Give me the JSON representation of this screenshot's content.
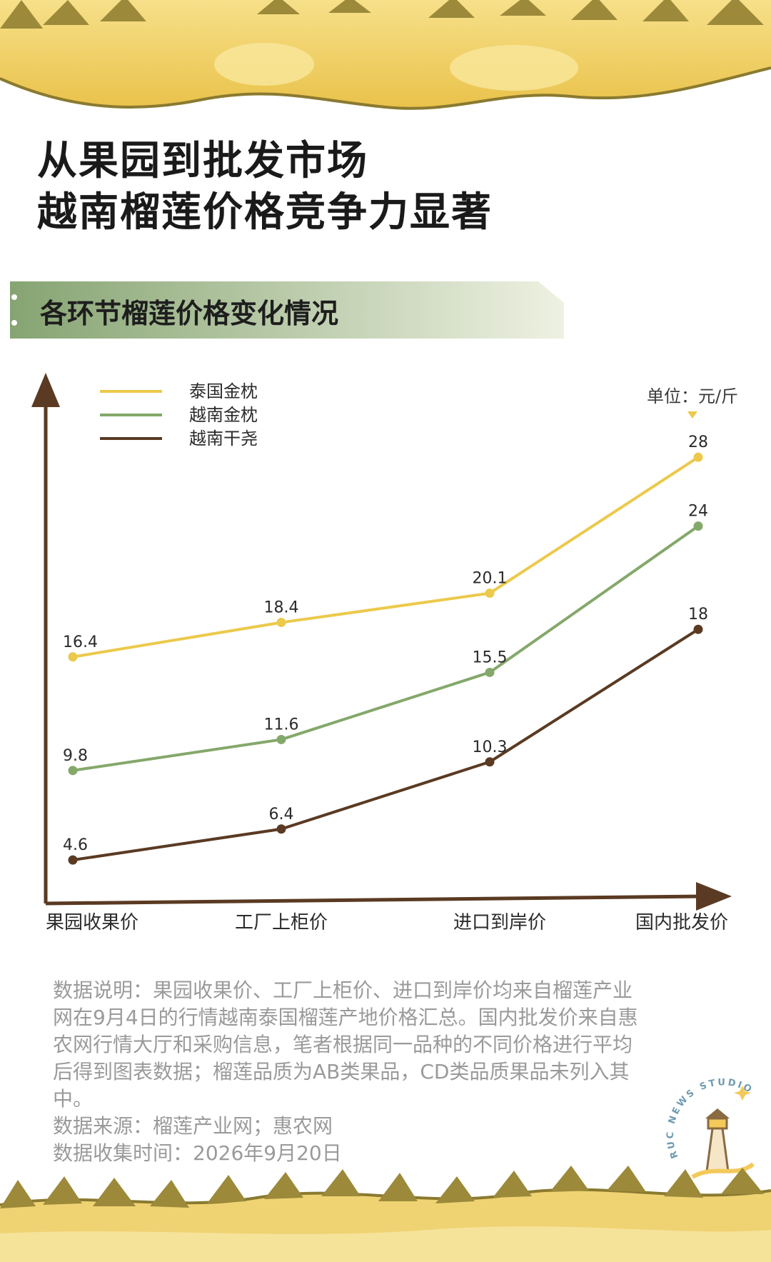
{
  "title": {
    "line1": "从果园到批发市场",
    "line2": "越南榴莲价格竞争力显著"
  },
  "section_header": "各环节榴莲价格变化情况",
  "chart_data": {
    "type": "line",
    "unit_label": "单位：元/斤",
    "categories": [
      "果园收果价",
      "工厂上柜价",
      "进口到岸价",
      "国内批发价"
    ],
    "series": [
      {
        "name": "泰国金枕",
        "color": "#ecc94b",
        "values": [
          16.4,
          18.4,
          20.1,
          28
        ]
      },
      {
        "name": "越南金枕",
        "color": "#84a86a",
        "values": [
          9.8,
          11.6,
          15.5,
          24
        ]
      },
      {
        "name": "越南干尧",
        "color": "#5a3a22",
        "values": [
          4.6,
          6.4,
          10.3,
          18
        ]
      }
    ],
    "data_labels": [
      [
        "16.4",
        "18.4",
        "20.1",
        "28"
      ],
      [
        "9.8",
        "11.6",
        "15.5",
        "24"
      ],
      [
        "4.6",
        "6.4",
        "10.3",
        "18"
      ]
    ],
    "grid": false,
    "legend_position": "top-left"
  },
  "notes": {
    "description": "数据说明：果园收果价、工厂上柜价、进口到岸价均来自榴莲产业网在9月4日的行情越南泰国榴莲产地价格汇总。国内批发价来自惠农网行情大厅和采购信息，笔者根据同一品种的不同价格进行平均后得到图表数据；榴莲品质为AB类果品，CD类品质果品未列入其中。",
    "source": "数据来源：榴莲产业网；惠农网",
    "collected": "数据收集时间：2026年9月20日"
  },
  "stamp_text": "RUC NEWS STUDIO",
  "colors": {
    "axis": "#5a3a22",
    "banner_start": "#86a472",
    "banner_end": "#eef1e2",
    "durian_flesh": "#f3d46a",
    "durian_husk": "#a08a3c"
  }
}
